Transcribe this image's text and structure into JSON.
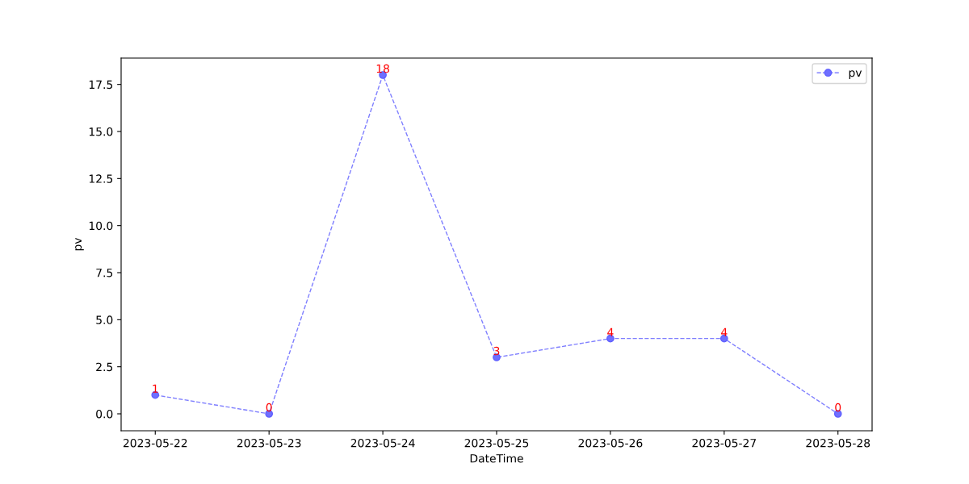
{
  "chart_data": {
    "type": "line",
    "xlabel": "DateTime",
    "ylabel": "pv",
    "categories": [
      "2023-05-22",
      "2023-05-23",
      "2023-05-24",
      "2023-05-25",
      "2023-05-26",
      "2023-05-27",
      "2023-05-28"
    ],
    "series": [
      {
        "name": "pv",
        "color": "#7f7fff",
        "values": [
          1,
          0,
          18,
          3,
          4,
          4,
          0
        ]
      }
    ],
    "ylim": [
      -0.9,
      18.9
    ],
    "yticks": [
      {
        "value": 0,
        "label": "0.0"
      },
      {
        "value": 2.5,
        "label": "2.5"
      },
      {
        "value": 5,
        "label": "5.0"
      },
      {
        "value": 7.5,
        "label": "7.5"
      },
      {
        "value": 10,
        "label": "10.0"
      },
      {
        "value": 12.5,
        "label": "12.5"
      },
      {
        "value": 15,
        "label": "15.0"
      },
      {
        "value": 17.5,
        "label": "17.5"
      }
    ],
    "data_labels": true,
    "grid": false,
    "legend": "top right",
    "marker": "circle",
    "line_style": "dashed"
  }
}
